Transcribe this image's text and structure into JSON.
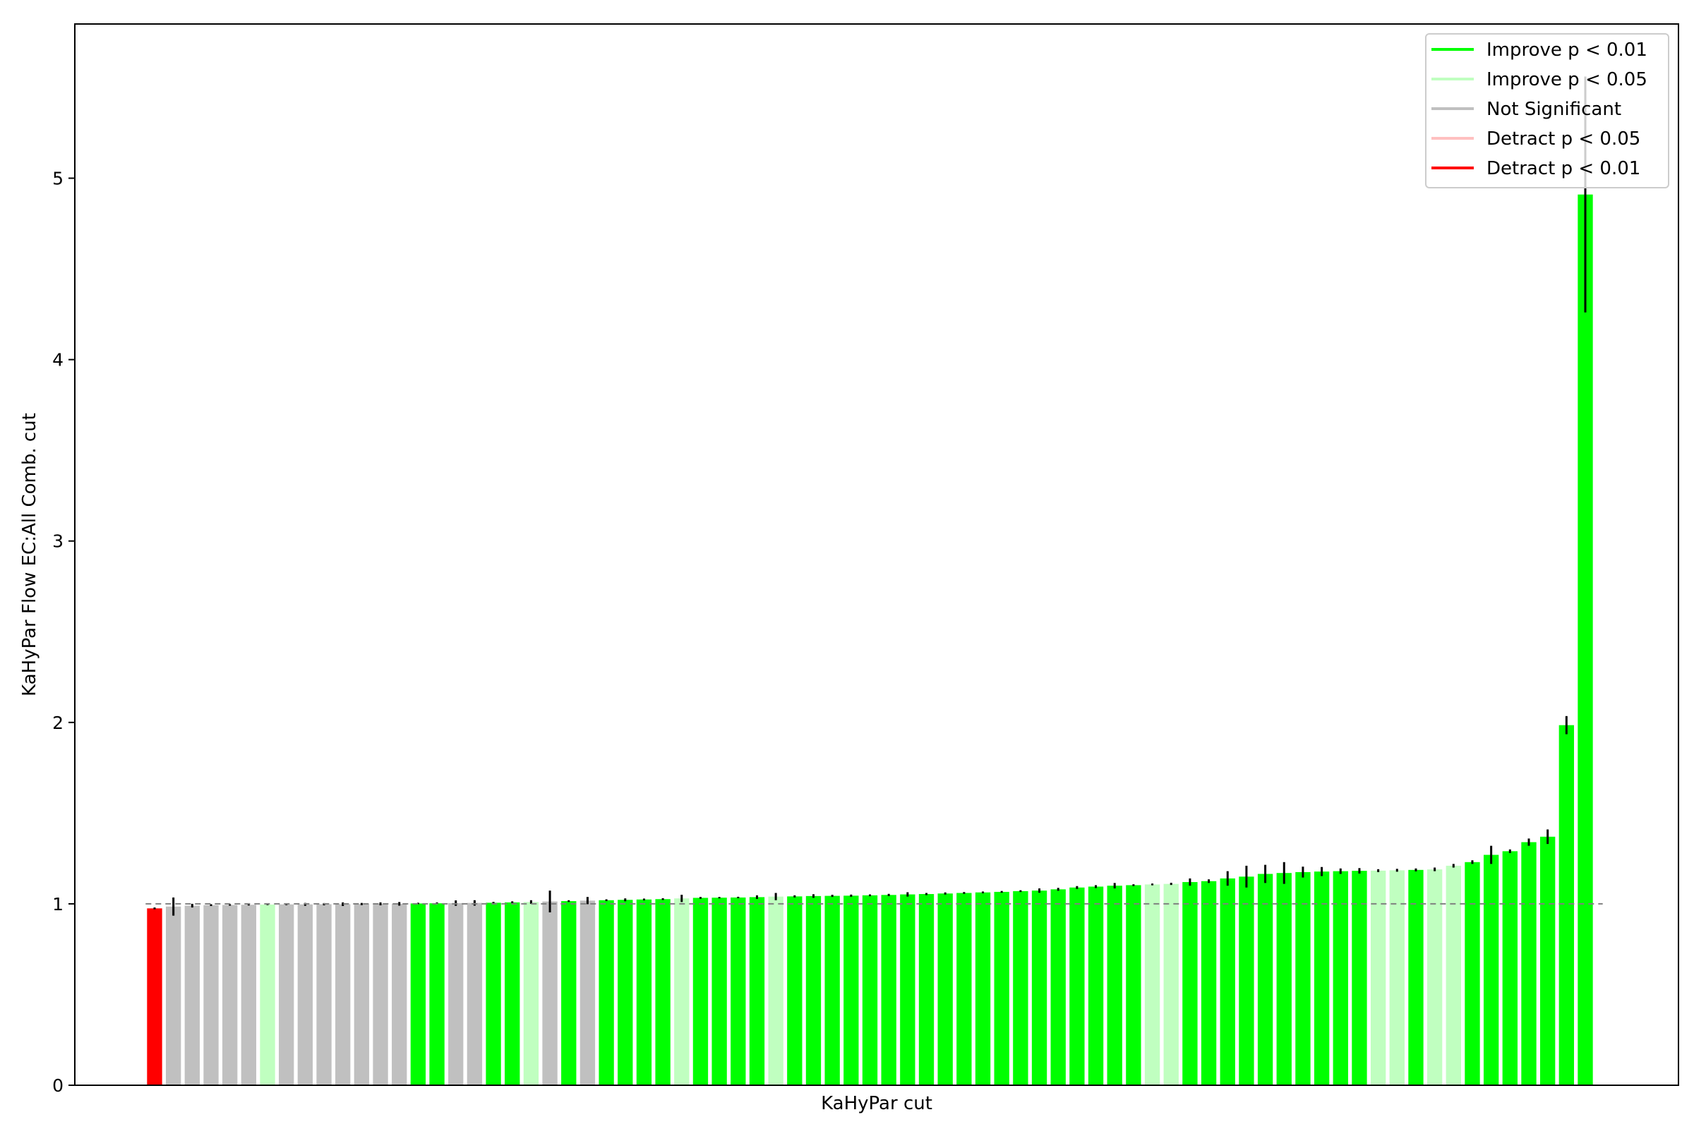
{
  "chart_data": {
    "type": "bar",
    "title": "",
    "xlabel": "KaHyPar cut",
    "ylabel": "KaHyPar Flow EC:All Comb. cut",
    "ylim": [
      0,
      5.85
    ],
    "yticks": [
      0,
      1,
      2,
      3,
      4,
      5
    ],
    "reference_line": 1.0,
    "grid": false,
    "legend_position": "top-right",
    "legend": [
      {
        "label": "Improve p < 0.01",
        "color": "#00ff00"
      },
      {
        "label": "Improve p < 0.05",
        "color": "#c0ffc0"
      },
      {
        "label": "Not Significant",
        "color": "#c0c0c0"
      },
      {
        "label": "Detract p < 0.05",
        "color": "#ffc0c0"
      },
      {
        "label": "Detract p < 0.01",
        "color": "#ff0000"
      }
    ],
    "colors": {
      "ig": "#00ff00",
      "il": "#c0ffc0",
      "ns": "#c0c0c0",
      "dl": "#ffc0c0",
      "dg": "#ff0000"
    },
    "bars": [
      {
        "v": 0.975,
        "e": 0.005,
        "c": "dg"
      },
      {
        "v": 0.985,
        "e": 0.05,
        "c": "ns"
      },
      {
        "v": 0.99,
        "e": 0.01,
        "c": "ns"
      },
      {
        "v": 0.993,
        "e": 0.005,
        "c": "ns"
      },
      {
        "v": 0.994,
        "e": 0.004,
        "c": "ns"
      },
      {
        "v": 0.995,
        "e": 0.004,
        "c": "ns"
      },
      {
        "v": 0.996,
        "e": 0.003,
        "c": "il"
      },
      {
        "v": 0.997,
        "e": 0.004,
        "c": "ns"
      },
      {
        "v": 0.997,
        "e": 0.008,
        "c": "ns"
      },
      {
        "v": 0.998,
        "e": 0.006,
        "c": "ns"
      },
      {
        "v": 0.998,
        "e": 0.01,
        "c": "ns"
      },
      {
        "v": 0.999,
        "e": 0.006,
        "c": "ns"
      },
      {
        "v": 1.0,
        "e": 0.008,
        "c": "ns"
      },
      {
        "v": 1.0,
        "e": 0.01,
        "c": "ns"
      },
      {
        "v": 1.002,
        "e": 0.004,
        "c": "ig"
      },
      {
        "v": 1.003,
        "e": 0.005,
        "c": "ig"
      },
      {
        "v": 1.004,
        "e": 0.015,
        "c": "ns"
      },
      {
        "v": 1.005,
        "e": 0.015,
        "c": "ns"
      },
      {
        "v": 1.006,
        "e": 0.005,
        "c": "ig"
      },
      {
        "v": 1.008,
        "e": 0.006,
        "c": "ig"
      },
      {
        "v": 1.01,
        "e": 0.01,
        "c": "il"
      },
      {
        "v": 1.013,
        "e": 0.06,
        "c": "ns"
      },
      {
        "v": 1.015,
        "e": 0.005,
        "c": "ig"
      },
      {
        "v": 1.018,
        "e": 0.02,
        "c": "ns"
      },
      {
        "v": 1.02,
        "e": 0.005,
        "c": "ig"
      },
      {
        "v": 1.022,
        "e": 0.008,
        "c": "ig"
      },
      {
        "v": 1.024,
        "e": 0.005,
        "c": "ig"
      },
      {
        "v": 1.026,
        "e": 0.005,
        "c": "ig"
      },
      {
        "v": 1.03,
        "e": 0.02,
        "c": "il"
      },
      {
        "v": 1.033,
        "e": 0.005,
        "c": "ig"
      },
      {
        "v": 1.034,
        "e": 0.004,
        "c": "ig"
      },
      {
        "v": 1.035,
        "e": 0.004,
        "c": "ig"
      },
      {
        "v": 1.037,
        "e": 0.01,
        "c": "ig"
      },
      {
        "v": 1.04,
        "e": 0.02,
        "c": "il"
      },
      {
        "v": 1.041,
        "e": 0.006,
        "c": "ig"
      },
      {
        "v": 1.043,
        "e": 0.01,
        "c": "ig"
      },
      {
        "v": 1.044,
        "e": 0.006,
        "c": "ig"
      },
      {
        "v": 1.045,
        "e": 0.006,
        "c": "ig"
      },
      {
        "v": 1.047,
        "e": 0.005,
        "c": "ig"
      },
      {
        "v": 1.049,
        "e": 0.006,
        "c": "ig"
      },
      {
        "v": 1.052,
        "e": 0.012,
        "c": "ig"
      },
      {
        "v": 1.054,
        "e": 0.006,
        "c": "ig"
      },
      {
        "v": 1.057,
        "e": 0.006,
        "c": "ig"
      },
      {
        "v": 1.06,
        "e": 0.005,
        "c": "ig"
      },
      {
        "v": 1.063,
        "e": 0.005,
        "c": "ig"
      },
      {
        "v": 1.066,
        "e": 0.005,
        "c": "ig"
      },
      {
        "v": 1.07,
        "e": 0.005,
        "c": "ig"
      },
      {
        "v": 1.073,
        "e": 0.012,
        "c": "ig"
      },
      {
        "v": 1.08,
        "e": 0.008,
        "c": "ig"
      },
      {
        "v": 1.09,
        "e": 0.008,
        "c": "ig"
      },
      {
        "v": 1.095,
        "e": 0.008,
        "c": "ig"
      },
      {
        "v": 1.1,
        "e": 0.015,
        "c": "ig"
      },
      {
        "v": 1.103,
        "e": 0.005,
        "c": "ig"
      },
      {
        "v": 1.107,
        "e": 0.005,
        "c": "il"
      },
      {
        "v": 1.11,
        "e": 0.006,
        "c": "il"
      },
      {
        "v": 1.12,
        "e": 0.02,
        "c": "ig"
      },
      {
        "v": 1.125,
        "e": 0.01,
        "c": "ig"
      },
      {
        "v": 1.14,
        "e": 0.04,
        "c": "ig"
      },
      {
        "v": 1.15,
        "e": 0.06,
        "c": "ig"
      },
      {
        "v": 1.165,
        "e": 0.05,
        "c": "ig"
      },
      {
        "v": 1.17,
        "e": 0.06,
        "c": "ig"
      },
      {
        "v": 1.175,
        "e": 0.03,
        "c": "ig"
      },
      {
        "v": 1.178,
        "e": 0.025,
        "c": "ig"
      },
      {
        "v": 1.18,
        "e": 0.015,
        "c": "ig"
      },
      {
        "v": 1.182,
        "e": 0.015,
        "c": "ig"
      },
      {
        "v": 1.183,
        "e": 0.008,
        "c": "il"
      },
      {
        "v": 1.185,
        "e": 0.008,
        "c": "il"
      },
      {
        "v": 1.187,
        "e": 0.008,
        "c": "ig"
      },
      {
        "v": 1.19,
        "e": 0.01,
        "c": "il"
      },
      {
        "v": 1.21,
        "e": 0.01,
        "c": "il"
      },
      {
        "v": 1.23,
        "e": 0.01,
        "c": "ig"
      },
      {
        "v": 1.27,
        "e": 0.05,
        "c": "ig"
      },
      {
        "v": 1.29,
        "e": 0.01,
        "c": "ig"
      },
      {
        "v": 1.34,
        "e": 0.02,
        "c": "ig"
      },
      {
        "v": 1.37,
        "e": 0.04,
        "c": "ig"
      },
      {
        "v": 1.985,
        "e": 0.05,
        "c": "ig"
      },
      {
        "v": 4.91,
        "e": 0.65,
        "c": "ig"
      }
    ]
  }
}
